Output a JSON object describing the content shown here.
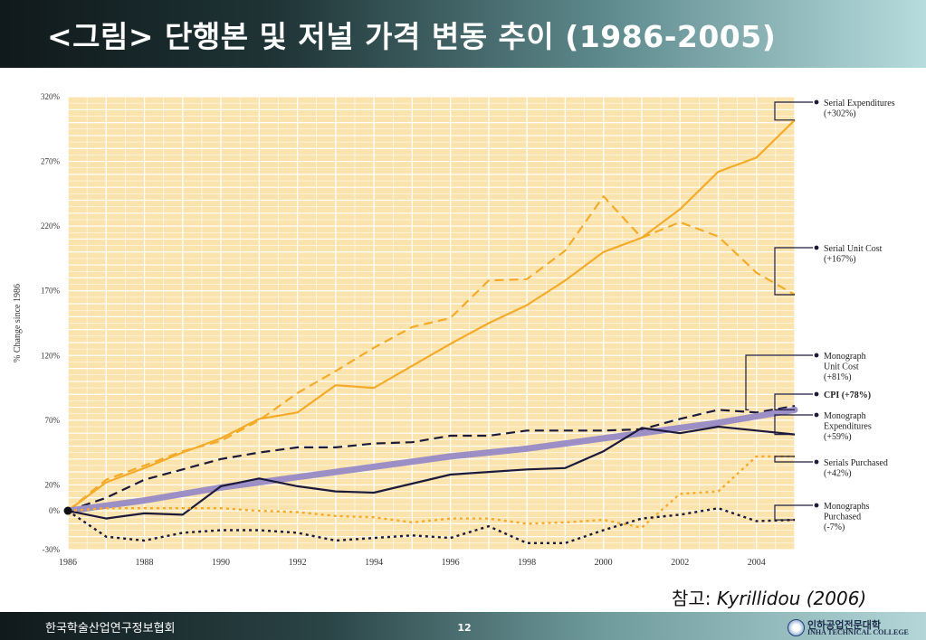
{
  "slide": {
    "title": "<그림> 단행본 및 저널 가격 변동 추이 (1986-2005)",
    "source_prefix": "참고: ",
    "source_author": "Kyrillidou (2006)",
    "org": "한국학술산업연구정보협회",
    "page": "12",
    "logo_korean": "인하공업전문대학",
    "logo_english": "INHA TECHNICAL COLLEGE"
  },
  "colors": {
    "plot_background": "#fbe3ad",
    "gridline": "#ffffff",
    "serial_orange": "#f5ab2a",
    "cpi_purple": "#9c8fc6",
    "monograph_navy": "#1c1a3b"
  },
  "chart_data": {
    "type": "line",
    "title": "",
    "xlabel": "",
    "ylabel": "% Change since 1986",
    "xlim": [
      1986,
      2005
    ],
    "ylim": [
      -30,
      320
    ],
    "x_ticks": [
      "1986",
      "1988",
      "1990",
      "1992",
      "1994",
      "1996",
      "1998",
      "2000",
      "2002",
      "2004"
    ],
    "y_ticks": [
      "320%",
      "270%",
      "220%",
      "170%",
      "120%",
      "70%",
      "20%",
      "0%",
      "-30%"
    ],
    "grid": true,
    "legend_placement": "right",
    "series": [
      {
        "name": "Serial Expenditures (+302%)",
        "label_lines": [
          "Serial Expenditures",
          "(+302%)"
        ],
        "color": "#f5ab2a",
        "style": "solid",
        "x": [
          1986,
          1987,
          1988,
          1989,
          1990,
          1991,
          1992,
          1993,
          1994,
          1995,
          1996,
          1997,
          1998,
          1999,
          2000,
          2001,
          2002,
          2003,
          2004,
          2005
        ],
        "values": [
          0,
          22,
          33,
          45,
          56,
          71,
          76,
          97,
          95,
          112,
          129,
          145,
          159,
          178,
          200,
          211,
          233,
          262,
          273,
          302
        ]
      },
      {
        "name": "Serial Unit Cost (+167%)",
        "label_lines": [
          "Serial Unit Cost",
          "(+167%)"
        ],
        "color": "#f5ab2a",
        "style": "dashed",
        "x": [
          1986,
          1987,
          1988,
          1989,
          1990,
          1991,
          1992,
          1993,
          1994,
          1995,
          1996,
          1997,
          1998,
          1999,
          2000,
          2001,
          2002,
          2003,
          2004,
          2005
        ],
        "values": [
          0,
          24,
          35,
          46,
          54,
          70,
          91,
          108,
          126,
          142,
          149,
          178,
          179,
          201,
          243,
          211,
          223,
          212,
          184,
          167
        ]
      },
      {
        "name": "Monograph Unit Cost (+81%)",
        "label_lines": [
          "Monograph",
          "Unit Cost",
          "(+81%)"
        ],
        "color": "#1c1a3b",
        "style": "dashed",
        "x": [
          1986,
          1987,
          1988,
          1989,
          1990,
          1991,
          1992,
          1993,
          1994,
          1995,
          1996,
          1997,
          1998,
          1999,
          2000,
          2001,
          2002,
          2003,
          2004,
          2005
        ],
        "values": [
          0,
          10,
          24,
          32,
          40,
          45,
          49,
          49,
          52,
          53,
          58,
          58,
          62,
          62,
          62,
          63,
          71,
          78,
          76,
          81
        ]
      },
      {
        "name": "CPI (+78%)",
        "label_lines": [
          "CPI (+78%)"
        ],
        "color": "#9c8fc6",
        "style": "thick",
        "x": [
          1986,
          1987,
          1988,
          1989,
          1990,
          1991,
          1992,
          1993,
          1994,
          1995,
          1996,
          1997,
          1998,
          1999,
          2000,
          2001,
          2002,
          2003,
          2004,
          2005
        ],
        "values": [
          0,
          4,
          8,
          13,
          18,
          22,
          26,
          30,
          34,
          38,
          42,
          45,
          48,
          52,
          56,
          60,
          64,
          68,
          73,
          78
        ]
      },
      {
        "name": "Monograph Expenditures (+59%)",
        "label_lines": [
          "Monograph",
          "Expenditures",
          "(+59%)"
        ],
        "color": "#1c1a3b",
        "style": "solid",
        "x": [
          1986,
          1987,
          1988,
          1989,
          1990,
          1991,
          1992,
          1993,
          1994,
          1995,
          1996,
          1997,
          1998,
          1999,
          2000,
          2001,
          2002,
          2003,
          2004,
          2005
        ],
        "values": [
          0,
          -6,
          -2,
          -3,
          19,
          25,
          19,
          15,
          14,
          21,
          28,
          30,
          32,
          33,
          46,
          64,
          60,
          65,
          62,
          59
        ]
      },
      {
        "name": "Serials Purchased (+42%)",
        "label_lines": [
          "Serials Purchased",
          "(+42%)"
        ],
        "color": "#f5ab2a",
        "style": "dotted",
        "x": [
          1986,
          1987,
          1988,
          1989,
          1990,
          1991,
          1992,
          1993,
          1994,
          1995,
          1996,
          1997,
          1998,
          1999,
          2000,
          2001,
          2002,
          2003,
          2004,
          2005
        ],
        "values": [
          0,
          2,
          2,
          2,
          2,
          0,
          -1,
          -4,
          -5,
          -9,
          -6,
          -6,
          -10,
          -9,
          -7,
          -13,
          13,
          15,
          42,
          42
        ]
      },
      {
        "name": "Monographs Purchased (-7%)",
        "label_lines": [
          "Monographs",
          "Purchased",
          "(-7%)"
        ],
        "color": "#1c1a3b",
        "style": "dotted",
        "x": [
          1986,
          1987,
          1988,
          1989,
          1990,
          1991,
          1992,
          1993,
          1994,
          1995,
          1996,
          1997,
          1998,
          1999,
          2000,
          2001,
          2002,
          2003,
          2004,
          2005
        ],
        "values": [
          0,
          -20,
          -23,
          -17,
          -15,
          -15,
          -17,
          -23,
          -21,
          -19,
          -21,
          -12,
          -25,
          -25,
          -15,
          -6,
          -3,
          2,
          -8,
          -7
        ]
      }
    ]
  }
}
